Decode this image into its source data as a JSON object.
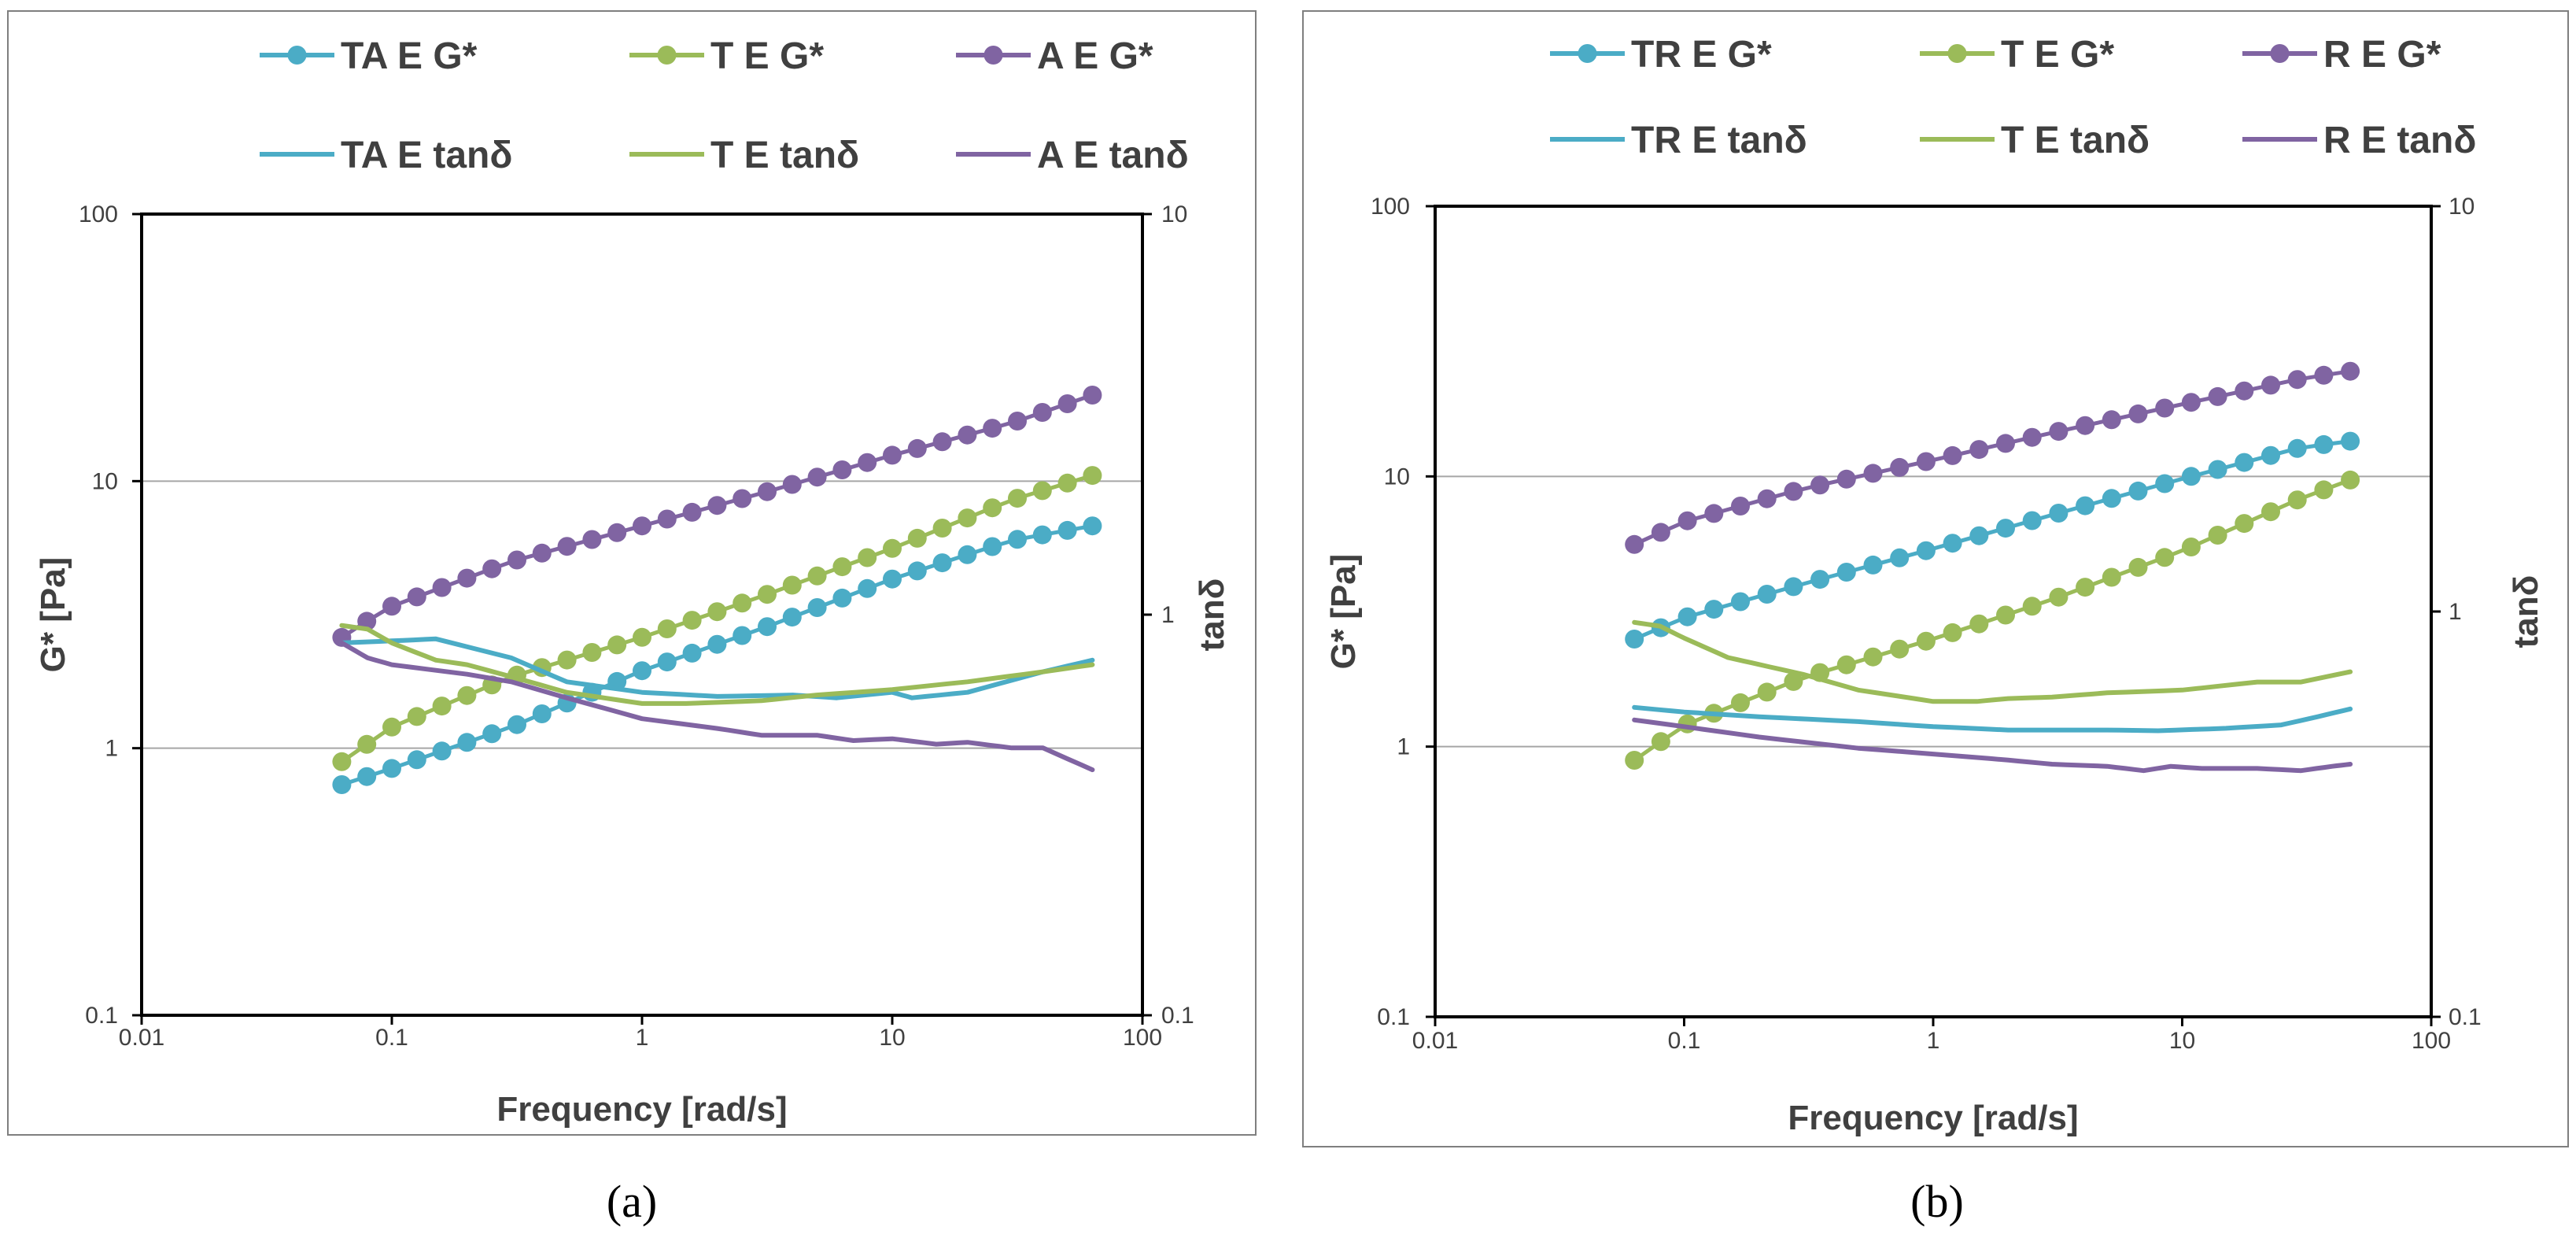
{
  "colors": {
    "cyan": "#4bacc6",
    "green": "#9bbb59",
    "purple": "#8064a2",
    "grid": "#a6a6a6",
    "axis": "#000000",
    "frame": "#7f7f7f"
  },
  "chart_data": [
    {
      "type": "line",
      "panel_label": "(a)",
      "xlabel": "Frequency [rad/s]",
      "ylabel": "G* [Pa]",
      "y2label": "tanδ",
      "xscale": "log",
      "yscale": "log",
      "y2scale": "log",
      "xlim": [
        0.01,
        100
      ],
      "ylim": [
        0.1,
        100
      ],
      "y2lim": [
        0.1,
        10
      ],
      "xticks": [
        "0.01",
        "0.1",
        "1",
        "10",
        "100"
      ],
      "yticks": [
        "0.1",
        "1",
        "10",
        "100"
      ],
      "y2ticks": [
        "0.1",
        "1",
        "10"
      ],
      "grid": true,
      "legend_position": "top",
      "series": [
        {
          "name": "TA E G*",
          "axis": "left",
          "color": "cyan",
          "marker": true,
          "x_range": [
            0.0631,
            63.1
          ],
          "points": 31,
          "anchors": [
            [
              0.0631,
              0.73
            ],
            [
              0.1,
              0.84
            ],
            [
              0.3,
              1.2
            ],
            [
              1,
              1.95
            ],
            [
              3,
              2.8
            ],
            [
              10,
              4.3
            ],
            [
              30,
              6.0
            ],
            [
              63.1,
              6.8
            ]
          ]
        },
        {
          "name": "T E G*",
          "axis": "left",
          "color": "green",
          "marker": true,
          "x_range": [
            0.0631,
            63.1
          ],
          "points": 31,
          "anchors": [
            [
              0.0631,
              0.89
            ],
            [
              0.1,
              1.2
            ],
            [
              0.3,
              1.85
            ],
            [
              1,
              2.6
            ],
            [
              3,
              3.7
            ],
            [
              10,
              5.6
            ],
            [
              30,
              8.5
            ],
            [
              63.1,
              10.5
            ]
          ]
        },
        {
          "name": "A E  G*",
          "axis": "left",
          "color": "purple",
          "marker": true,
          "x_range": [
            0.0631,
            63.1
          ],
          "points": 31,
          "anchors": [
            [
              0.0631,
              2.6
            ],
            [
              0.08,
              3.0
            ],
            [
              0.1,
              3.4
            ],
            [
              0.3,
              5.0
            ],
            [
              1,
              6.8
            ],
            [
              3,
              9.0
            ],
            [
              10,
              12.5
            ],
            [
              30,
              16.5
            ],
            [
              63.1,
              21
            ]
          ]
        },
        {
          "name": "TA E tanδ",
          "axis": "right",
          "color": "cyan",
          "marker": false,
          "anchors": [
            [
              0.0631,
              0.85
            ],
            [
              0.1,
              0.86
            ],
            [
              0.15,
              0.87
            ],
            [
              0.3,
              0.78
            ],
            [
              0.5,
              0.68
            ],
            [
              1,
              0.64
            ],
            [
              2,
              0.625
            ],
            [
              4,
              0.63
            ],
            [
              6,
              0.62
            ],
            [
              10,
              0.64
            ],
            [
              12,
              0.62
            ],
            [
              20,
              0.64
            ],
            [
              40,
              0.72
            ],
            [
              63.1,
              0.77
            ]
          ]
        },
        {
          "name": "T E tanδ",
          "axis": "right",
          "color": "green",
          "marker": false,
          "anchors": [
            [
              0.0631,
              0.94
            ],
            [
              0.08,
              0.92
            ],
            [
              0.1,
              0.85
            ],
            [
              0.15,
              0.77
            ],
            [
              0.2,
              0.75
            ],
            [
              0.3,
              0.7
            ],
            [
              0.5,
              0.64
            ],
            [
              1,
              0.6
            ],
            [
              1.5,
              0.6
            ],
            [
              3,
              0.61
            ],
            [
              5,
              0.63
            ],
            [
              10,
              0.65
            ],
            [
              20,
              0.68
            ],
            [
              40,
              0.72
            ],
            [
              63.1,
              0.75
            ]
          ]
        },
        {
          "name": "A E tanδ",
          "axis": "right",
          "color": "purple",
          "marker": false,
          "anchors": [
            [
              0.0631,
              0.85
            ],
            [
              0.08,
              0.78
            ],
            [
              0.1,
              0.75
            ],
            [
              0.2,
              0.71
            ],
            [
              0.3,
              0.68
            ],
            [
              0.5,
              0.62
            ],
            [
              1,
              0.55
            ],
            [
              2,
              0.52
            ],
            [
              3,
              0.5
            ],
            [
              5,
              0.5
            ],
            [
              7,
              0.485
            ],
            [
              10,
              0.49
            ],
            [
              15,
              0.475
            ],
            [
              20,
              0.48
            ],
            [
              30,
              0.465
            ],
            [
              40,
              0.465
            ],
            [
              63.1,
              0.41
            ]
          ]
        }
      ],
      "legend_rows": [
        [
          "TA E G*",
          "T E G*",
          "A E  G*"
        ],
        [
          "TA E tanδ",
          "T E tanδ",
          "A E tanδ"
        ]
      ]
    },
    {
      "type": "line",
      "panel_label": "(b)",
      "xlabel": "Frequency [rad/s]",
      "ylabel": "G* [Pa]",
      "y2label": "tanδ",
      "xscale": "log",
      "yscale": "log",
      "y2scale": "log",
      "xlim": [
        0.01,
        100
      ],
      "ylim": [
        0.1,
        100
      ],
      "y2lim": [
        0.1,
        10
      ],
      "xticks": [
        "0.01",
        "0.1",
        "1",
        "10",
        "100"
      ],
      "yticks": [
        "0.1",
        "1",
        "10",
        "100"
      ],
      "y2ticks": [
        "0.1",
        "1",
        "10"
      ],
      "grid": true,
      "legend_position": "top",
      "series": [
        {
          "name": "TR E G*",
          "axis": "left",
          "color": "cyan",
          "marker": true,
          "x_range": [
            0.0631,
            47.3
          ],
          "points": 28,
          "anchors": [
            [
              0.0631,
              2.5
            ],
            [
              0.1,
              3.0
            ],
            [
              0.3,
              4.0
            ],
            [
              1,
              5.4
            ],
            [
              3,
              7.2
            ],
            [
              10,
              9.8
            ],
            [
              30,
              12.8
            ],
            [
              47.3,
              13.5
            ]
          ]
        },
        {
          "name": "T E G*",
          "axis": "left",
          "color": "green",
          "marker": true,
          "x_range": [
            0.0631,
            47.3
          ],
          "points": 28,
          "anchors": [
            [
              0.0631,
              0.89
            ],
            [
              0.1,
              1.2
            ],
            [
              0.3,
              1.8
            ],
            [
              1,
              2.5
            ],
            [
              3,
              3.5
            ],
            [
              10,
              5.3
            ],
            [
              30,
              8.3
            ],
            [
              47.3,
              9.7
            ]
          ]
        },
        {
          "name": "R E G*",
          "axis": "left",
          "color": "purple",
          "marker": true,
          "x_range": [
            0.0631,
            47.3
          ],
          "points": 28,
          "anchors": [
            [
              0.0631,
              5.6
            ],
            [
              0.1,
              6.8
            ],
            [
              0.3,
              9.0
            ],
            [
              1,
              11.5
            ],
            [
              3,
              14.5
            ],
            [
              10,
              18.5
            ],
            [
              30,
              23
            ],
            [
              47.3,
              24.5
            ]
          ]
        },
        {
          "name": "TR E tanδ",
          "axis": "right",
          "color": "cyan",
          "marker": false,
          "anchors": [
            [
              0.0631,
              0.58
            ],
            [
              0.1,
              0.565
            ],
            [
              0.2,
              0.55
            ],
            [
              0.5,
              0.535
            ],
            [
              1,
              0.52
            ],
            [
              2,
              0.51
            ],
            [
              5,
              0.51
            ],
            [
              8,
              0.508
            ],
            [
              15,
              0.515
            ],
            [
              25,
              0.525
            ],
            [
              35,
              0.55
            ],
            [
              47.3,
              0.575
            ]
          ]
        },
        {
          "name": "T E tanδ",
          "axis": "right",
          "color": "green",
          "marker": false,
          "anchors": [
            [
              0.0631,
              0.94
            ],
            [
              0.08,
              0.92
            ],
            [
              0.1,
              0.86
            ],
            [
              0.15,
              0.77
            ],
            [
              0.2,
              0.74
            ],
            [
              0.3,
              0.7
            ],
            [
              0.5,
              0.64
            ],
            [
              1,
              0.6
            ],
            [
              1.5,
              0.6
            ],
            [
              2,
              0.61
            ],
            [
              3,
              0.615
            ],
            [
              5,
              0.63
            ],
            [
              10,
              0.64
            ],
            [
              20,
              0.67
            ],
            [
              30,
              0.67
            ],
            [
              47.3,
              0.71
            ]
          ]
        },
        {
          "name": "R E tanδ",
          "axis": "right",
          "color": "purple",
          "marker": false,
          "anchors": [
            [
              0.0631,
              0.54
            ],
            [
              0.1,
              0.52
            ],
            [
              0.2,
              0.49
            ],
            [
              0.5,
              0.46
            ],
            [
              1,
              0.445
            ],
            [
              2,
              0.43
            ],
            [
              3,
              0.42
            ],
            [
              5,
              0.415
            ],
            [
              7,
              0.405
            ],
            [
              9,
              0.415
            ],
            [
              12,
              0.41
            ],
            [
              20,
              0.41
            ],
            [
              30,
              0.405
            ],
            [
              40,
              0.415
            ],
            [
              47.3,
              0.42
            ]
          ]
        }
      ],
      "legend_rows": [
        [
          "TR E G*",
          "T E G*",
          "R E G*"
        ],
        [
          "TR E tanδ",
          "T E tanδ",
          "R E tanδ"
        ]
      ]
    }
  ]
}
